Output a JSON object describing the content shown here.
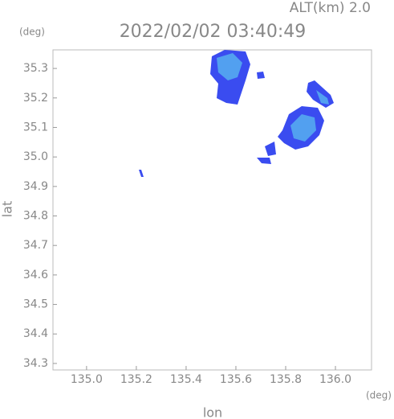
{
  "chart_data": {
    "type": "map",
    "title": "2022/02/02 03:40:49",
    "subtitle": "ALT(km) 2.0",
    "x_label": "lon",
    "y_label": "lat",
    "x_unit": "(deg)",
    "y_unit": "(deg)",
    "xlim": [
      134.865,
      136.145
    ],
    "xticks": [
      {
        "value": 135,
        "label": "135.0"
      },
      135.2,
      135.4,
      135.6,
      135.8,
      {
        "value": 136,
        "label": "136.0"
      }
    ],
    "ylim": [
      34.278,
      35.363
    ],
    "yticks": [
      34.3,
      34.4,
      34.5,
      34.6,
      34.7,
      34.8,
      34.9,
      {
        "value": 35,
        "label": "35.0"
      },
      35.1,
      35.2,
      35.3
    ],
    "grid": false
  }
}
